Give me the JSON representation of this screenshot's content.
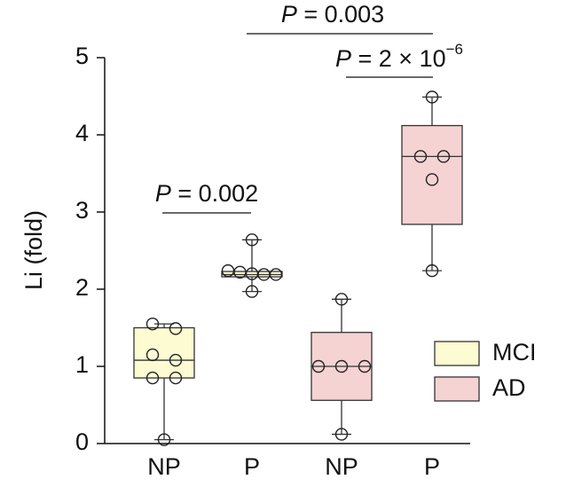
{
  "chart_data": {
    "type": "box",
    "y_label": "Li (fold)",
    "categories": [
      "NP",
      "P",
      "NP",
      "P"
    ],
    "ylim": [
      0,
      5
    ],
    "yticks": [
      0,
      1,
      2,
      3,
      4,
      5
    ],
    "series": [
      {
        "name": "MCI",
        "color": "#fdfbd2",
        "boxes": [
          {
            "min": 0.05,
            "q1": 0.85,
            "median": 1.08,
            "q3": 1.5,
            "max": 1.55,
            "points": [
              1.55,
              1.49,
              1.15,
              1.08,
              0.85,
              0.85,
              0.05
            ]
          },
          {
            "min": 1.97,
            "q1": 2.16,
            "median": 2.19,
            "q3": 2.23,
            "max": 2.64,
            "points": [
              2.64,
              2.24,
              2.22,
              2.2,
              2.19,
              2.19,
              1.97
            ]
          },
          null,
          null
        ]
      },
      {
        "name": "AD",
        "color": "#f6d3d3",
        "boxes": [
          null,
          null,
          {
            "min": 0.12,
            "q1": 0.56,
            "median": 1.0,
            "q3": 1.44,
            "max": 1.87,
            "points": [
              1.87,
              1.0,
              1.0,
              1.0,
              0.12
            ]
          },
          {
            "min": 2.24,
            "q1": 2.84,
            "median": 3.72,
            "q3": 4.12,
            "max": 4.49,
            "points": [
              4.49,
              3.72,
              3.72,
              3.42,
              2.24
            ]
          }
        ]
      }
    ],
    "annotations": [
      {
        "symbol": "P",
        "text": "= 0.002"
      },
      {
        "symbol": "P",
        "text": "= 0.003"
      },
      {
        "symbol": "P",
        "text": "= 2 × 10",
        "superscript": "−6"
      }
    ]
  }
}
